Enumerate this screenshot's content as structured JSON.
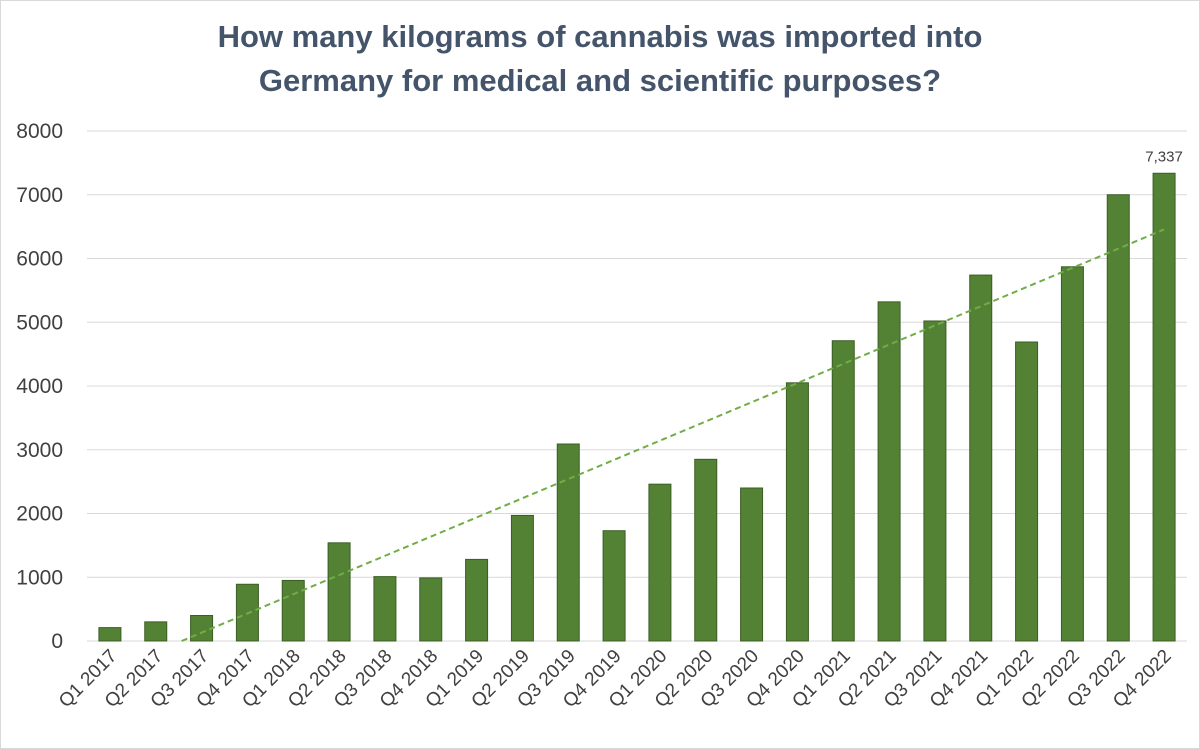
{
  "chart_data": {
    "type": "bar",
    "title_lines": [
      "How many kilograms of cannabis was imported into",
      "Germany for medical and scientific purposes?"
    ],
    "categories": [
      "Q1 2017",
      "Q2 2017",
      "Q3 2017",
      "Q4 2017",
      "Q1 2018",
      "Q2 2018",
      "Q3 2018",
      "Q4 2018",
      "Q1 2019",
      "Q2 2019",
      "Q3 2019",
      "Q4 2019",
      "Q1 2020",
      "Q2 2020",
      "Q3 2020",
      "Q4 2020",
      "Q1 2021",
      "Q2 2021",
      "Q3 2021",
      "Q4 2021",
      "Q1 2022",
      "Q2 2022",
      "Q3 2022",
      "Q4 2022"
    ],
    "values": [
      210,
      300,
      400,
      890,
      950,
      1540,
      1010,
      990,
      1280,
      1970,
      3090,
      1730,
      2460,
      2850,
      2400,
      4050,
      4710,
      5320,
      5020,
      5740,
      4690,
      5870,
      7000,
      7337
    ],
    "data_labels": [
      {
        "index": 23,
        "text": "7,337"
      }
    ],
    "trendline": {
      "type": "linear",
      "style": "dashed"
    },
    "ylim": [
      0,
      8000
    ],
    "y_ticks": [
      0,
      1000,
      2000,
      3000,
      4000,
      5000,
      6000,
      7000,
      8000
    ],
    "grid": "horizontal",
    "xlabel": "",
    "ylabel": "",
    "colors": {
      "bar_fill": "#548235",
      "bar_stroke": "#3b5e24",
      "trendline": "#70ad47",
      "grid": "#d9d9d9",
      "title": "#44546a",
      "tick_text": "#404040"
    }
  }
}
